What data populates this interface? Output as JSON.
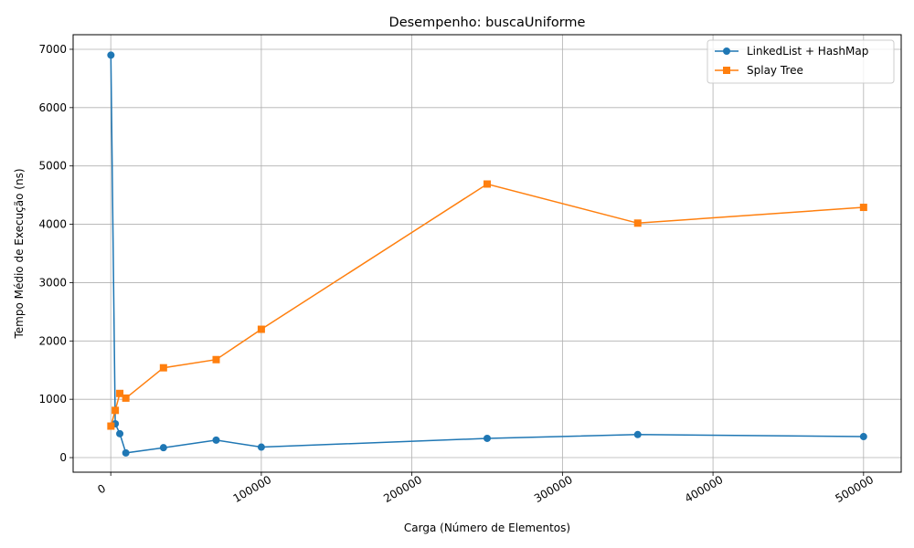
{
  "chart_data": {
    "type": "line",
    "title": "Desempenho: buscaUniforme",
    "xlabel": "Carga (Número de Elementos)",
    "ylabel": "Tempo Médio de Execução (ns)",
    "xlim": [
      -25000,
      525000
    ],
    "ylim": [
      -250,
      7250
    ],
    "xticks": [
      0,
      100000,
      200000,
      300000,
      400000,
      500000
    ],
    "yticks": [
      0,
      1000,
      2000,
      3000,
      4000,
      5000,
      6000,
      7000
    ],
    "grid": true,
    "legend_position": "top-right",
    "series": [
      {
        "name": "LinkedList + HashMap",
        "color": "#1f77b4",
        "marker": "circle",
        "points": [
          [
            100,
            6900
          ],
          [
            3000,
            580
          ],
          [
            6000,
            410
          ],
          [
            10000,
            80
          ],
          [
            35000,
            170
          ],
          [
            70000,
            300
          ],
          [
            100000,
            180
          ],
          [
            250000,
            330
          ],
          [
            350000,
            395
          ],
          [
            500000,
            360
          ]
        ]
      },
      {
        "name": "Splay Tree",
        "color": "#ff7f0e",
        "marker": "square",
        "points": [
          [
            100,
            540
          ],
          [
            3000,
            810
          ],
          [
            6000,
            1100
          ],
          [
            10000,
            1020
          ],
          [
            35000,
            1540
          ],
          [
            70000,
            1680
          ],
          [
            100000,
            2200
          ],
          [
            250000,
            4690
          ],
          [
            350000,
            4020
          ],
          [
            500000,
            4290
          ]
        ]
      }
    ]
  }
}
